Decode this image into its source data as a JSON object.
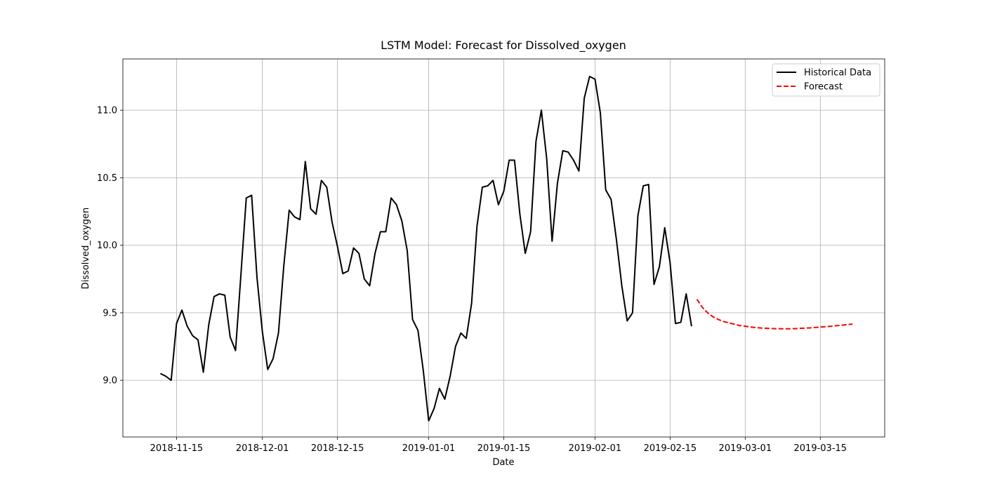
{
  "chart_data": {
    "type": "line",
    "title": "LSTM Model: Forecast for Dissolved_oxygen",
    "x_label": "Date",
    "y_label": "Dissolved_oxygen",
    "xlim": [
      "2018-11-05",
      "2019-03-27"
    ],
    "xticks": [
      "2018-11-15",
      "2018-12-01",
      "2018-12-15",
      "2019-01-01",
      "2019-01-15",
      "2019-02-01",
      "2019-02-15",
      "2019-03-01",
      "2019-03-15"
    ],
    "ylim": [
      8.58,
      11.38
    ],
    "yticks": [
      {
        "value": 9,
        "label": "9.0"
      },
      9.5,
      {
        "value": 10,
        "label": "10.0"
      },
      10.5,
      {
        "value": 11,
        "label": "11.0"
      }
    ],
    "grid": true,
    "legend": "upper right",
    "series": [
      {
        "name": "Historical Data",
        "color": "#000000",
        "linestyle": "solid",
        "x": [
          "2018-11-12",
          "2018-11-13",
          "2018-11-14",
          "2018-11-15",
          "2018-11-16",
          "2018-11-17",
          "2018-11-18",
          "2018-11-19",
          "2018-11-20",
          "2018-11-21",
          "2018-11-22",
          "2018-11-23",
          "2018-11-24",
          "2018-11-25",
          "2018-11-26",
          "2018-11-27",
          "2018-11-28",
          "2018-11-29",
          "2018-11-30",
          "2018-12-01",
          "2018-12-02",
          "2018-12-03",
          "2018-12-04",
          "2018-12-05",
          "2018-12-06",
          "2018-12-07",
          "2018-12-08",
          "2018-12-09",
          "2018-12-10",
          "2018-12-11",
          "2018-12-12",
          "2018-12-13",
          "2018-12-14",
          "2018-12-15",
          "2018-12-16",
          "2018-12-17",
          "2018-12-18",
          "2018-12-19",
          "2018-12-20",
          "2018-12-21",
          "2018-12-22",
          "2018-12-23",
          "2018-12-24",
          "2018-12-25",
          "2018-12-26",
          "2018-12-27",
          "2018-12-28",
          "2018-12-29",
          "2018-12-30",
          "2018-12-31",
          "2019-01-01",
          "2019-01-02",
          "2019-01-03",
          "2019-01-04",
          "2019-01-05",
          "2019-01-06",
          "2019-01-07",
          "2019-01-08",
          "2019-01-09",
          "2019-01-10",
          "2019-01-11",
          "2019-01-12",
          "2019-01-13",
          "2019-01-14",
          "2019-01-15",
          "2019-01-16",
          "2019-01-17",
          "2019-01-18",
          "2019-01-19",
          "2019-01-20",
          "2019-01-21",
          "2019-01-22",
          "2019-01-23",
          "2019-01-24",
          "2019-01-25",
          "2019-01-26",
          "2019-01-27",
          "2019-01-28",
          "2019-01-29",
          "2019-01-30",
          "2019-01-31",
          "2019-02-01",
          "2019-02-02",
          "2019-02-03",
          "2019-02-04",
          "2019-02-05",
          "2019-02-06",
          "2019-02-07",
          "2019-02-08",
          "2019-02-09",
          "2019-02-10",
          "2019-02-11",
          "2019-02-12",
          "2019-02-13",
          "2019-02-14",
          "2019-02-15",
          "2019-02-16",
          "2019-02-17",
          "2019-02-18",
          "2019-02-19"
        ],
        "values": [
          9.05,
          9.03,
          9.0,
          9.42,
          9.52,
          9.4,
          9.33,
          9.3,
          9.06,
          9.41,
          9.62,
          9.64,
          9.63,
          9.32,
          9.22,
          9.78,
          10.35,
          10.37,
          9.76,
          9.36,
          9.08,
          9.16,
          9.35,
          9.85,
          10.26,
          10.21,
          10.19,
          10.62,
          10.27,
          10.23,
          10.48,
          10.43,
          10.17,
          9.99,
          9.79,
          9.81,
          9.98,
          9.94,
          9.75,
          9.7,
          9.94,
          10.1,
          10.1,
          10.35,
          10.3,
          10.18,
          9.96,
          9.45,
          9.37,
          9.07,
          8.7,
          8.79,
          8.94,
          8.86,
          9.03,
          9.25,
          9.35,
          9.31,
          9.57,
          10.14,
          10.43,
          10.44,
          10.48,
          10.3,
          10.4,
          10.63,
          10.63,
          10.23,
          9.94,
          10.1,
          10.77,
          11.0,
          10.64,
          10.03,
          10.46,
          10.7,
          10.69,
          10.63,
          10.55,
          11.09,
          11.25,
          11.23,
          10.98,
          10.41,
          10.34,
          10.04,
          9.7,
          9.44,
          9.5,
          10.22,
          10.44,
          10.45,
          9.71,
          9.84,
          10.13,
          9.87,
          9.42,
          9.43,
          9.64,
          9.4
        ]
      },
      {
        "name": "Forecast",
        "color": "#ff0000",
        "linestyle": "dashed",
        "x": [
          "2019-02-20",
          "2019-02-21",
          "2019-02-22",
          "2019-02-23",
          "2019-02-24",
          "2019-02-25",
          "2019-02-26",
          "2019-02-27",
          "2019-02-28",
          "2019-03-01",
          "2019-03-02",
          "2019-03-03",
          "2019-03-04",
          "2019-03-05",
          "2019-03-06",
          "2019-03-07",
          "2019-03-08",
          "2019-03-09",
          "2019-03-10",
          "2019-03-11",
          "2019-03-12",
          "2019-03-13",
          "2019-03-14",
          "2019-03-15",
          "2019-03-16",
          "2019-03-17",
          "2019-03-18",
          "2019-03-19",
          "2019-03-20",
          "2019-03-21"
        ],
        "values": [
          9.6,
          9.54,
          9.5,
          9.47,
          9.45,
          9.435,
          9.425,
          9.415,
          9.405,
          9.4,
          9.395,
          9.39,
          9.387,
          9.385,
          9.383,
          9.382,
          9.381,
          9.381,
          9.382,
          9.384,
          9.386,
          9.388,
          9.391,
          9.394,
          9.397,
          9.4,
          9.404,
          9.408,
          9.412,
          9.416
        ]
      }
    ]
  }
}
